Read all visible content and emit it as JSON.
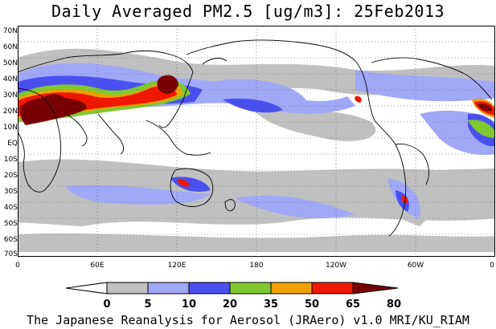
{
  "title": "Daily Averaged PM2.5 [ug/m3]: 25Feb2013",
  "lat_labels": [
    "70N",
    "60N",
    "50N",
    "40N",
    "30N",
    "20N",
    "10N",
    "EQ",
    "10S",
    "20S",
    "30S",
    "40S",
    "50S",
    "60S",
    "70S"
  ],
  "lon_labels": [
    "0",
    "60E",
    "120E",
    "180",
    "120W",
    "60W",
    "0"
  ],
  "colorbar": {
    "labels": [
      "0",
      "5",
      "10",
      "20",
      "35",
      "50",
      "65",
      "80"
    ],
    "colors": [
      "#ffffff",
      "#c0c0c0",
      "#a0a8f8",
      "#4a50f0",
      "#80c830",
      "#f0a000",
      "#f01800",
      "#780000"
    ]
  },
  "credit": "The Japanese Reanalysis for Aerosol (JRAero) v1.0 MRI/KU_RIAM"
}
